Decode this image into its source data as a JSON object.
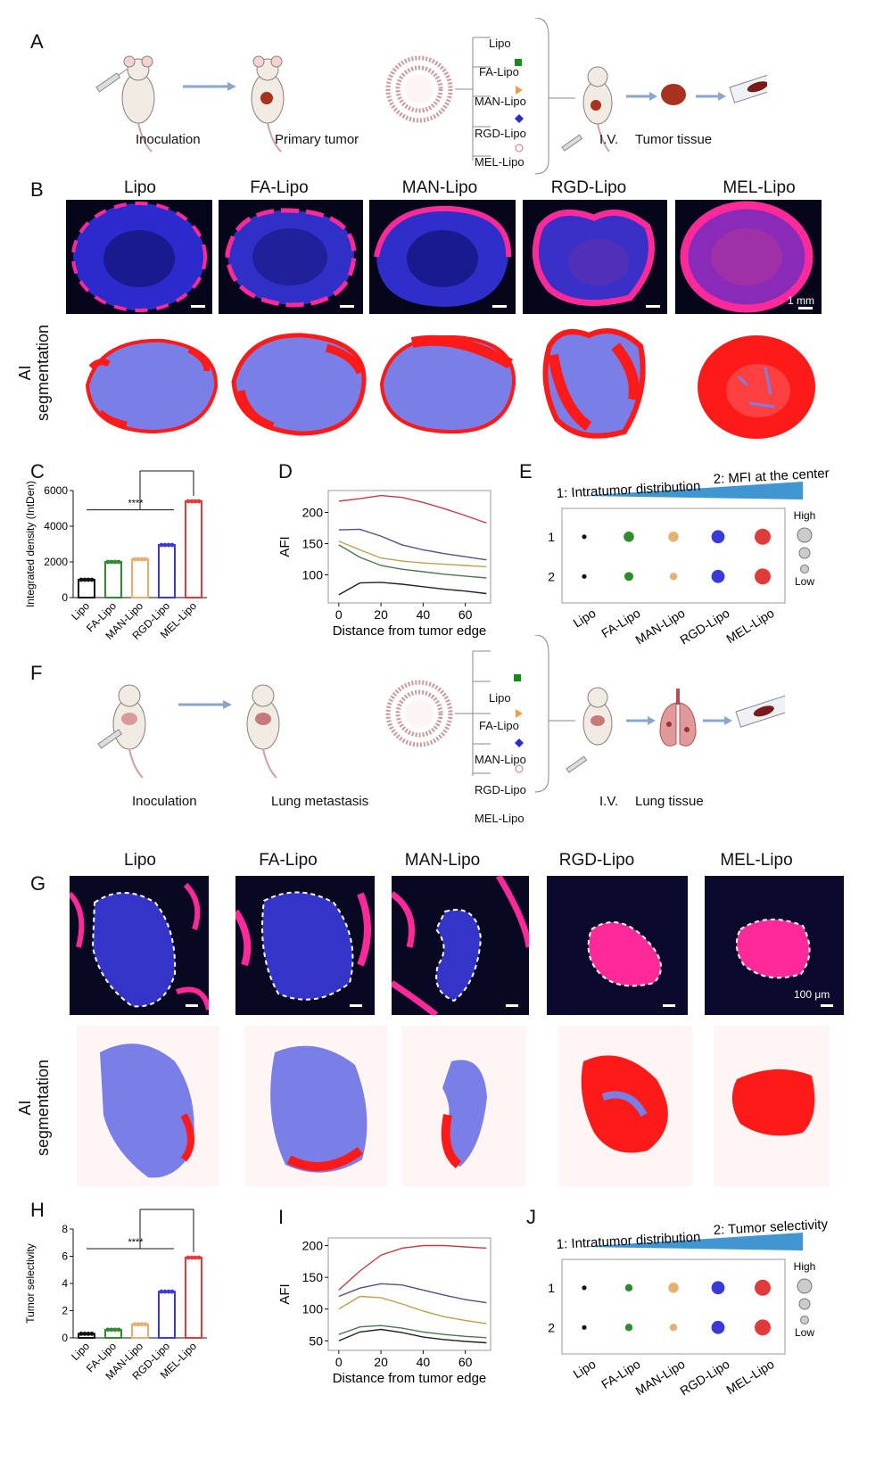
{
  "panels": {
    "A": "A",
    "B": "B",
    "C": "C",
    "D": "D",
    "E": "E",
    "F": "F",
    "G": "G",
    "H": "H",
    "I": "I",
    "J": "J"
  },
  "formulations": [
    "Lipo",
    "FA-Lipo",
    "MAN-Lipo",
    "RGD-Lipo",
    "MEL-Lipo"
  ],
  "schemeA": {
    "inoculation": "Inoculation",
    "primary_tumor": "Primary tumor",
    "iv": "I.V.",
    "tissue": "Tumor tissue"
  },
  "schemeF": {
    "inoculation": "Inoculation",
    "metastasis": "Lung metastasis",
    "iv": "I.V.",
    "tissue": "Lung tissue"
  },
  "seg_label": [
    "AI",
    "segmentation"
  ],
  "scalebar_B": "1 mm",
  "scalebar_G": "100 μm",
  "significance": "****",
  "legend_size": {
    "high": "High",
    "low": "Low"
  },
  "colors": {
    "lipo": "#111111",
    "fa": "#2e8b2e",
    "man": "#e8b070",
    "rgd": "#3a3ad8",
    "mel": "#e03a3a",
    "nucleus": "#2a2acd",
    "signal": "#ff2a9a",
    "seg_red": "#ff1a1a",
    "seg_blue": "#7a7fe8",
    "arrow": "#8aa6c8",
    "gradient": "#1f84c8"
  },
  "icons": [
    "mouse-icon",
    "liposome-icon",
    "syringe-icon",
    "tumor-icon",
    "slide-icon",
    "lung-icon"
  ],
  "chart_data": [
    {
      "id": "C",
      "type": "bar",
      "categories": [
        "Lipo",
        "FA-Lipo",
        "MAN-Lipo",
        "RGD-Lipo",
        "MEL-Lipo"
      ],
      "values": [
        1000,
        2000,
        2150,
        2950,
        5400
      ],
      "ylabel": "Integrated density (IntDen)",
      "ylim": [
        0,
        6000
      ],
      "yticks": [
        0,
        2000,
        4000,
        6000
      ],
      "colors": [
        "#111111",
        "#2e8b2e",
        "#e8b070",
        "#3a3ad8",
        "#e03a3a"
      ],
      "annotation": "****"
    },
    {
      "id": "D",
      "type": "line",
      "xlabel": "Distance from tumor edge",
      "ylabel": "AFI",
      "xlim": [
        -5,
        72
      ],
      "ylim": [
        55,
        235
      ],
      "xticks": [
        0,
        20,
        40,
        60
      ],
      "yticks": [
        100,
        150,
        200
      ],
      "series": [
        {
          "color": "#c04040",
          "x": [
            0,
            10,
            20,
            30,
            40,
            50,
            60,
            70
          ],
          "y": [
            218,
            222,
            227,
            224,
            216,
            206,
            195,
            183
          ]
        },
        {
          "color": "#5a4a8a",
          "x": [
            0,
            10,
            20,
            30,
            40,
            50,
            60,
            70
          ],
          "y": [
            172,
            173,
            162,
            148,
            140,
            134,
            129,
            124
          ]
        },
        {
          "color": "#c0a050",
          "x": [
            0,
            10,
            20,
            30,
            40,
            50,
            60,
            70
          ],
          "y": [
            154,
            140,
            127,
            122,
            119,
            117,
            115,
            113
          ]
        },
        {
          "color": "#4a7a4a",
          "x": [
            0,
            10,
            20,
            30,
            40,
            50,
            60,
            70
          ],
          "y": [
            148,
            128,
            115,
            109,
            105,
            101,
            98,
            95
          ]
        },
        {
          "color": "#222222",
          "x": [
            0,
            10,
            20,
            30,
            40,
            50,
            60,
            70
          ],
          "y": [
            68,
            87,
            88,
            85,
            81,
            77,
            74,
            70
          ]
        }
      ]
    },
    {
      "id": "E",
      "type": "scatter",
      "title1": "1: Intratumor distribution",
      "title2": "2: MFI at the center",
      "categories": [
        "Lipo",
        "FA-Lipo",
        "MAN-Lipo",
        "RGD-Lipo",
        "MEL-Lipo"
      ],
      "rows": [
        "1",
        "2"
      ],
      "sizes": [
        [
          1,
          3,
          3,
          4,
          5
        ],
        [
          1,
          2.5,
          2,
          4,
          5
        ]
      ],
      "colors": [
        "#111111",
        "#2e8b2e",
        "#e8b070",
        "#3a3ad8",
        "#e03a3a"
      ]
    },
    {
      "id": "H",
      "type": "bar",
      "categories": [
        "Lipo",
        "FA-Lipo",
        "MAN-Lipo",
        "RGD-Lipo",
        "MEL-Lipo"
      ],
      "values": [
        0.3,
        0.6,
        1.0,
        3.4,
        5.9
      ],
      "ylabel": "Tumor selectivity",
      "ylim": [
        0,
        8
      ],
      "yticks": [
        0,
        2,
        4,
        6,
        8
      ],
      "colors": [
        "#111111",
        "#2e8b2e",
        "#e8b070",
        "#3a3ad8",
        "#e03a3a"
      ],
      "annotation": "****"
    },
    {
      "id": "I",
      "type": "line",
      "xlabel": "Distance from tumor edge",
      "ylabel": "AFI",
      "xlim": [
        -5,
        72
      ],
      "ylim": [
        35,
        212
      ],
      "xticks": [
        0,
        20,
        40,
        60
      ],
      "yticks": [
        50,
        100,
        150,
        200
      ],
      "series": [
        {
          "color": "#c04040",
          "x": [
            0,
            10,
            20,
            30,
            40,
            50,
            60,
            70
          ],
          "y": [
            130,
            160,
            185,
            196,
            200,
            200,
            198,
            196
          ]
        },
        {
          "color": "#5a4a8a",
          "x": [
            0,
            10,
            20,
            30,
            40,
            50,
            60,
            70
          ],
          "y": [
            120,
            133,
            140,
            138,
            130,
            122,
            115,
            110
          ]
        },
        {
          "color": "#c0a050",
          "x": [
            0,
            10,
            20,
            30,
            40,
            50,
            60,
            70
          ],
          "y": [
            100,
            120,
            118,
            108,
            97,
            88,
            82,
            77
          ]
        },
        {
          "color": "#4a7a4a",
          "x": [
            0,
            10,
            20,
            30,
            40,
            50,
            60,
            70
          ],
          "y": [
            60,
            72,
            74,
            70,
            64,
            60,
            57,
            55
          ]
        },
        {
          "color": "#222222",
          "x": [
            0,
            10,
            20,
            30,
            40,
            50,
            60,
            70
          ],
          "y": [
            50,
            64,
            68,
            63,
            56,
            52,
            49,
            47
          ]
        }
      ]
    },
    {
      "id": "J",
      "type": "scatter",
      "title1": "1: Intratumor distribution",
      "title2": "2: Tumor selectivity",
      "categories": [
        "Lipo",
        "FA-Lipo",
        "MAN-Lipo",
        "RGD-Lipo",
        "MEL-Lipo"
      ],
      "rows": [
        "1",
        "2"
      ],
      "sizes": [
        [
          1,
          2,
          3,
          4,
          5
        ],
        [
          1,
          2,
          2,
          4,
          5
        ]
      ],
      "colors": [
        "#111111",
        "#2e8b2e",
        "#e8b070",
        "#3a3ad8",
        "#e03a3a"
      ]
    }
  ]
}
